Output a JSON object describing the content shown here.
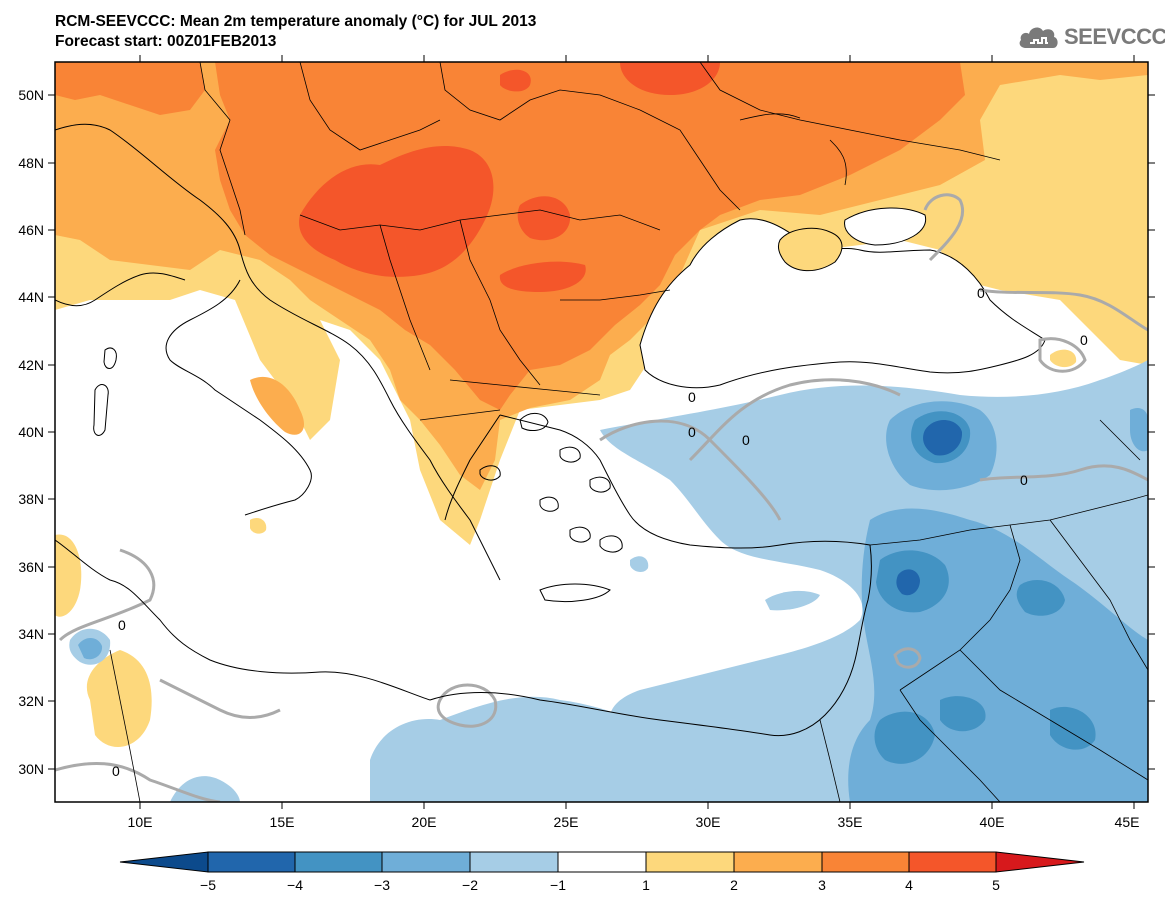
{
  "header": {
    "title": "RCM-SEEVCCC: Mean 2m temperature anomaly (°C) for JUL 2013",
    "subtitle": "Forecast start: 00Z01FEB2013"
  },
  "logo": {
    "text": "SEEVCCC",
    "icon": "cloud-icon"
  },
  "map": {
    "lon_range": [
      7,
      45.5
    ],
    "lat_range": [
      29,
      51
    ],
    "lon_ticks": [
      10,
      15,
      20,
      25,
      30,
      35,
      40,
      45
    ],
    "lon_tick_labels": [
      "10E",
      "15E",
      "20E",
      "25E",
      "30E",
      "35E",
      "40E",
      "45E"
    ],
    "lat_ticks": [
      30,
      32,
      34,
      36,
      38,
      40,
      42,
      44,
      46,
      48,
      50
    ],
    "lat_tick_labels": [
      "30N",
      "32N",
      "34N",
      "36N",
      "38N",
      "40N",
      "42N",
      "44N",
      "46N",
      "48N",
      "50N"
    ],
    "contour_labels": [
      "0",
      "0",
      "0",
      "0",
      "0",
      "0",
      "0",
      "0"
    ]
  },
  "colorbar": {
    "tick_labels": [
      "−5",
      "−4",
      "−3",
      "−2",
      "−1",
      "1",
      "2",
      "3",
      "4",
      "5"
    ],
    "colors": [
      "#0c4a8c",
      "#2166ac",
      "#4393c3",
      "#6faed8",
      "#a6cde6",
      "#ffffff",
      "#fdd87c",
      "#fcad4e",
      "#f98436",
      "#f4562a",
      "#d7191c"
    ]
  }
}
